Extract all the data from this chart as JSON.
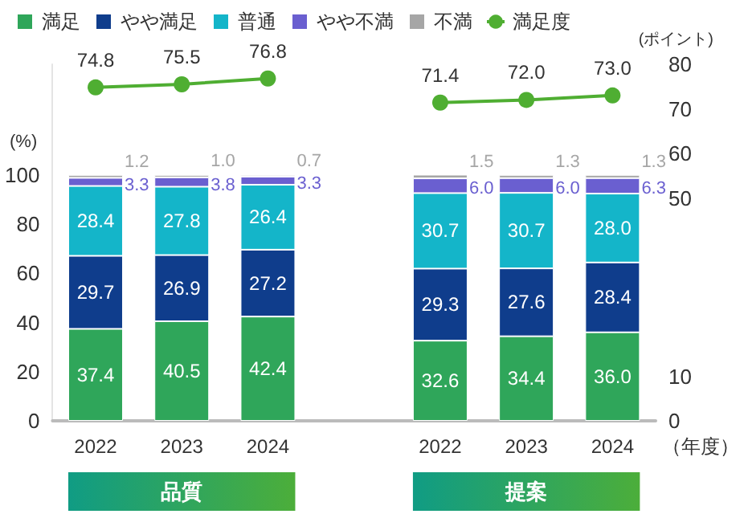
{
  "chart_data": {
    "type": "bar",
    "stacked": true,
    "categories": [
      "2022",
      "2023",
      "2024",
      null,
      "2022",
      "2023",
      "2024"
    ],
    "series": [
      {
        "name": "満足",
        "color": "#2fa65a",
        "values": [
          37.4,
          40.5,
          42.4,
          null,
          32.6,
          34.4,
          36.0
        ],
        "value_labels": [
          "37.4",
          "40.5",
          "42.4",
          null,
          "32.6",
          "34.4",
          "36.0"
        ]
      },
      {
        "name": "やや満足",
        "color": "#0f3d8c",
        "values": [
          29.7,
          26.9,
          27.2,
          null,
          29.3,
          27.6,
          28.4
        ],
        "value_labels": [
          "29.7",
          "26.9",
          "27.2",
          null,
          "29.3",
          "27.6",
          "28.4"
        ]
      },
      {
        "name": "普通",
        "color": "#14b5c9",
        "values": [
          28.4,
          27.8,
          26.4,
          null,
          30.7,
          30.7,
          28.0
        ],
        "value_labels": [
          "28.4",
          "27.8",
          "26.4",
          null,
          "30.7",
          "30.7",
          "28.0"
        ]
      },
      {
        "name": "やや不満",
        "color": "#6a5fd0",
        "values": [
          3.3,
          3.8,
          3.3,
          null,
          6.0,
          6.0,
          6.3
        ],
        "value_labels": [
          "3.3",
          "3.8",
          "3.3",
          null,
          "6.0",
          "6.0",
          "6.3"
        ]
      },
      {
        "name": "不満",
        "color": "#a6a6a6",
        "values": [
          1.2,
          1.0,
          0.7,
          null,
          1.5,
          1.3,
          1.3
        ],
        "value_labels": [
          "1.2",
          "1.0",
          "0.7",
          null,
          "1.5",
          "1.3",
          "1.3"
        ]
      },
      {
        "name": "満足度",
        "type": "line",
        "axis": "y2",
        "color": "#4fae32",
        "values": [
          74.8,
          75.5,
          76.8,
          null,
          71.4,
          72.0,
          73.0
        ],
        "value_labels": [
          "74.8",
          "75.5",
          "76.8",
          null,
          "71.4",
          "72.0",
          "73.0"
        ]
      }
    ],
    "marker": "circle",
    "legend": "top",
    "grid": false,
    "ylabel": "(%)",
    "y2label": "(ポイント)",
    "xlabel": "（年度）",
    "ylim": [
      0,
      145
    ],
    "yticks": [
      0,
      20,
      40,
      60,
      80,
      100
    ],
    "y2lim": [
      0,
      80
    ],
    "y2ticks": [
      0,
      10,
      50,
      60,
      70,
      80
    ],
    "annotations": [
      "品質",
      "提案"
    ]
  }
}
